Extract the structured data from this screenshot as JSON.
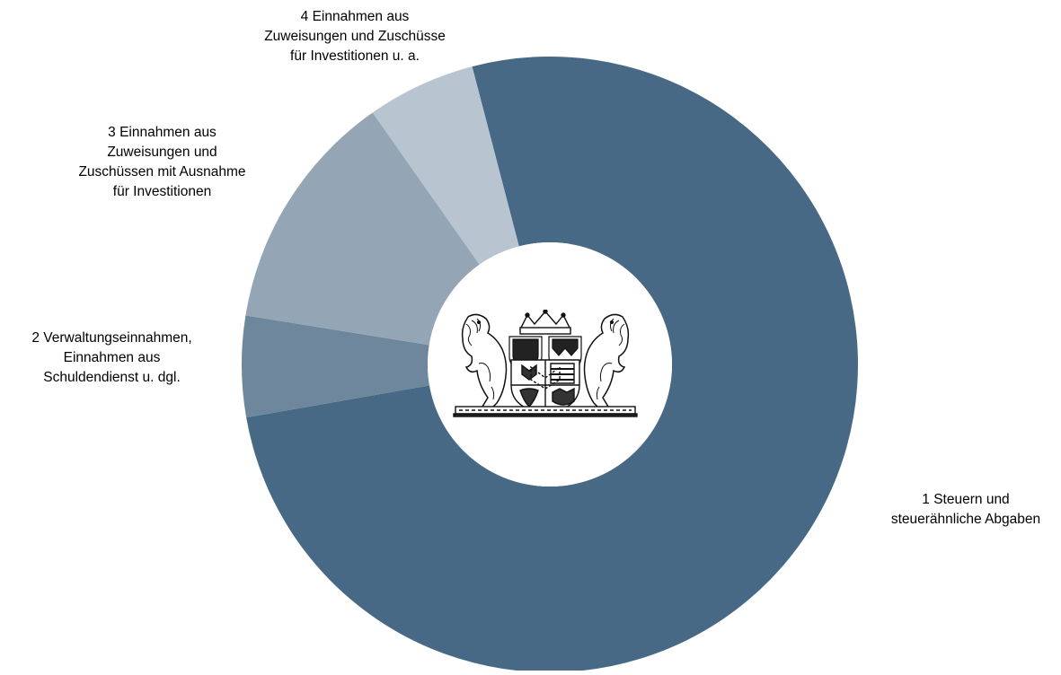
{
  "chart_data": {
    "type": "pie",
    "variant": "donut",
    "title": "",
    "categories": [
      "1 Steuern und steuerähnliche Abgaben",
      "2 Verwaltungseinnahmen, Einnahmen aus Schuldendienst u. dgl.",
      "3 Einnahmen aus Zuweisungen und Zuschüssen mit Ausnahme für Investitionen",
      "4 Einnahmen aus Zuweisungen und Zuschüsse für Investitionen u. a."
    ],
    "values": [
      76.3,
      5.3,
      12.7,
      5.7
    ],
    "colors": [
      "#476986",
      "#6e879d",
      "#94a6b6",
      "#b8c4cf"
    ],
    "labels": {
      "slice_1": [
        "1 Steuern und",
        "steuerähnliche Abgaben"
      ],
      "slice_2": [
        "2 Verwaltungseinnahmen,",
        "Einnahmen aus",
        "Schuldendienst u. dgl."
      ],
      "slice_3": [
        "3 Einnahmen aus",
        "Zuweisungen und",
        "Zuschüssen mit Ausnahme",
        "für Investitionen"
      ],
      "slice_4": [
        "4 Einnahmen aus",
        "Zuweisungen und Zuschüsse",
        "für Investitionen u. a."
      ]
    },
    "legend": "none",
    "center_image": "bavarian-coat-of-arms"
  }
}
